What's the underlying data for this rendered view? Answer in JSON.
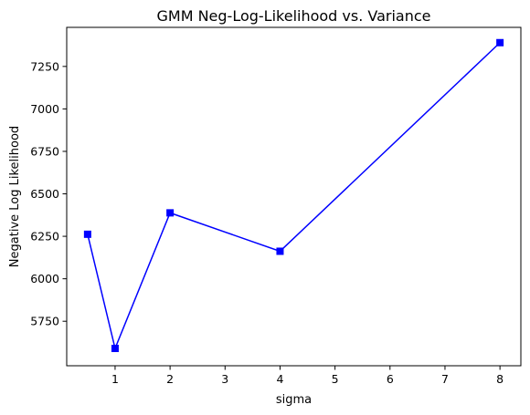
{
  "chart_data": {
    "type": "line",
    "title": "GMM Neg-Log-Likelihood vs. Variance",
    "xlabel": "sigma",
    "ylabel": "Negative Log Likelihood",
    "xlim": [
      0.12,
      8.38
    ],
    "ylim": [
      5488,
      7480
    ],
    "xticks": [
      1,
      2,
      3,
      4,
      5,
      6,
      7,
      8
    ],
    "yticks": [
      5750,
      6000,
      6250,
      6500,
      6750,
      7000,
      7250
    ],
    "grid": false,
    "legend": "none",
    "series": [
      {
        "x": [
          0.5,
          1,
          2,
          4,
          8
        ],
        "y": [
          6262,
          5590,
          6388,
          6162,
          7390
        ],
        "color": "#0000ff",
        "marker": "square"
      }
    ]
  }
}
